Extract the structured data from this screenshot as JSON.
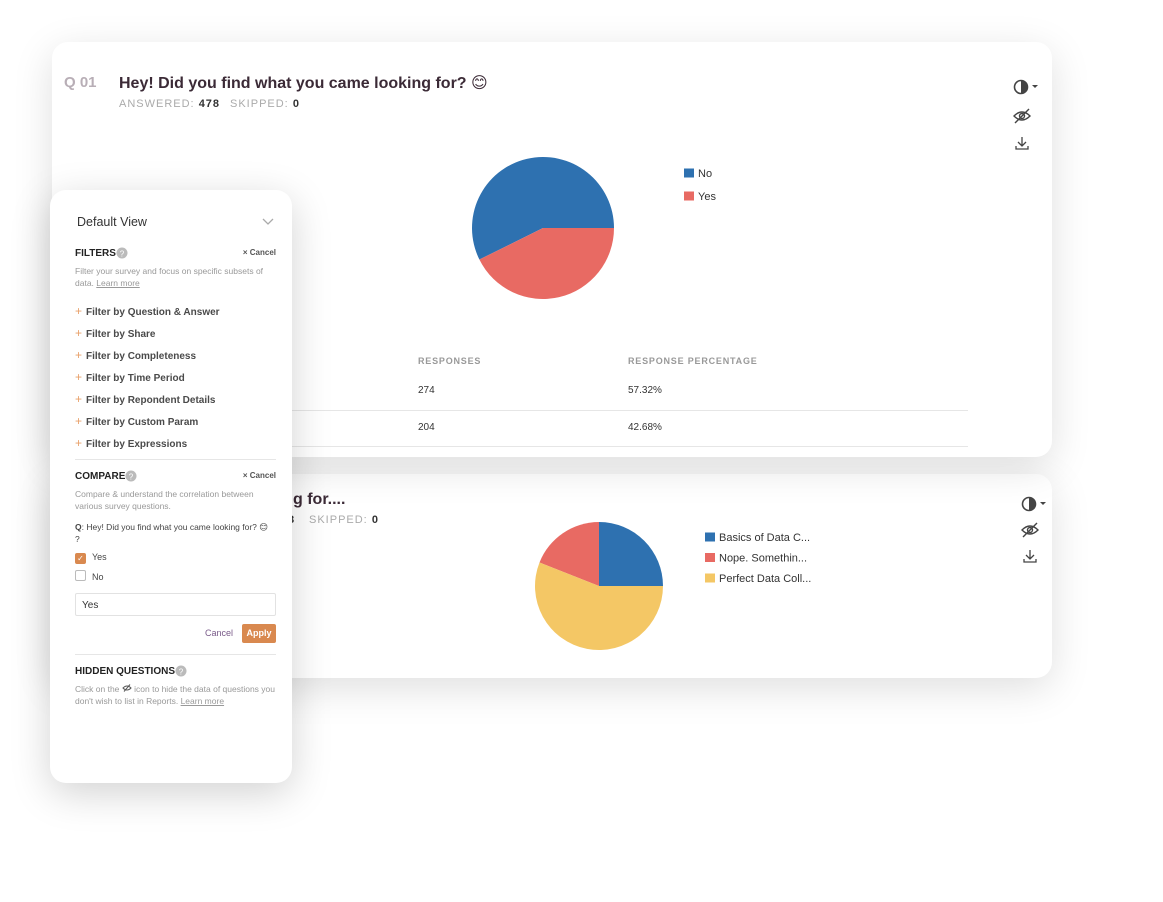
{
  "chart_data": [
    {
      "type": "pie",
      "categories": [
        "No",
        "Yes"
      ],
      "values": [
        274,
        204
      ],
      "colors": [
        "#2e71b0",
        "#e86a63"
      ]
    },
    {
      "type": "pie",
      "categories": [
        "Basics of Data C...",
        "Nope. Somethin...",
        "Perfect Data Coll..."
      ],
      "values": [
        25,
        19,
        56
      ],
      "colors": [
        "#2e71b0",
        "#e86a63",
        "#f4c765"
      ]
    }
  ],
  "cards": [
    {
      "number": "Q 01",
      "title": "Hey! Did you find what you came looking for? 😊",
      "answered_label": "ANSWERED:",
      "answered": 478,
      "skipped_label": "SKIPPED:",
      "skipped": 0,
      "table": {
        "headers": [
          "RESPONSES",
          "RESPONSE PERCENTAGE"
        ],
        "percentages": [
          "57.32%",
          "42.68%"
        ]
      }
    },
    {
      "title": "g for....",
      "answered": 8,
      "skipped_label": "SKIPPED:",
      "skipped": 0
    }
  ],
  "panel": {
    "view": "Default View",
    "filters": {
      "title": "FILTERS",
      "cancel": "Cancel",
      "description": "Filter your survey and focus on specific subsets of data.",
      "learn_more": "Learn more",
      "items": [
        "Filter by Question & Answer",
        "Filter by Share",
        "Filter by Completeness",
        "Filter by Time Period",
        "Filter by Repondent Details",
        "Filter by Custom Param",
        "Filter by Expressions"
      ]
    },
    "compare": {
      "title": "COMPARE",
      "cancel": "Cancel",
      "description": "Compare & understand the correlation between various survey questions.",
      "question_prefix": "Q",
      "question": ": Hey! Did you find what you came looking for? 😊 ?",
      "options": [
        {
          "label": "Yes",
          "checked": true
        },
        {
          "label": "No",
          "checked": false
        }
      ],
      "input": "Yes",
      "cancel_button": "Cancel",
      "apply_button": "Apply"
    },
    "hidden": {
      "title": "HIDDEN QUESTIONS",
      "text_before": "Click on the",
      "text_after": "icon to hide the data of questions you don't wish to list in Reports.",
      "learn_more": "Learn more"
    }
  }
}
